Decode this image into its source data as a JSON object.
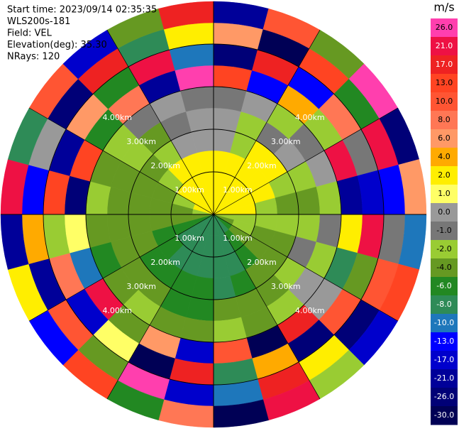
{
  "chart_data": {
    "type": "ppi",
    "info": [
      "Start time: 2023/09/14 02:35:35",
      "WLS200s-181",
      "Field: VEL",
      "Elevation(deg): 35.30",
      "NRays: 120"
    ],
    "rlim": [
      0,
      5
    ],
    "range_rings": [
      {
        "value": 1,
        "label": "1.00km"
      },
      {
        "value": 2,
        "label": "2.00km"
      },
      {
        "value": 3,
        "label": "3.00km"
      },
      {
        "value": 4,
        "label": "4.00km"
      }
    ],
    "values": [
      [
        3,
        3,
        3,
        3,
        2.5,
        2.5,
        -1.5,
        -3,
        -5,
        -7,
        -7,
        -7,
        -7,
        -7,
        -7,
        -7,
        -5,
        -3,
        -1.5,
        2.5,
        3,
        3,
        3,
        3
      ],
      [
        3,
        3.5,
        3,
        3,
        3,
        2.5,
        -1.5,
        -1.5,
        -3,
        -5,
        -7,
        -7,
        -7,
        -7,
        -7,
        -7,
        -5,
        -3,
        -3,
        -1.5,
        2.5,
        3,
        3,
        3
      ],
      [
        2.5,
        3,
        3.5,
        3,
        2.5,
        -1.5,
        -1.5,
        -3,
        -3,
        -5,
        -7,
        -7,
        -7,
        -7,
        -7,
        -5,
        -5,
        -3,
        -3,
        -3,
        -1.5,
        2.5,
        2.5,
        3
      ],
      [
        0.5,
        -1.5,
        2.5,
        2.5,
        -1.5,
        -3,
        -1.5,
        -3,
        -3,
        -3,
        -5,
        -7,
        -5,
        -5,
        -5,
        -5,
        -3,
        -3,
        -3,
        -3,
        -3,
        -1.5,
        0.5,
        0.5
      ],
      [
        0.5,
        -1.5,
        -0.5,
        0.5,
        -1.5,
        -3,
        -1.5,
        -0.5,
        -1.5,
        -3,
        -3,
        -3,
        -5,
        -5,
        -3,
        -3,
        -3,
        -3,
        -3,
        -3,
        -1.5,
        -3,
        -0.5,
        0.5
      ],
      [
        -0.5,
        0.5,
        -1.5,
        -0.5,
        0.5,
        -1.5,
        -0.5,
        -1.5,
        0.5,
        -1.5,
        -3,
        -1.5,
        -3,
        -3,
        -1.5,
        -3,
        -5,
        -3,
        -1.5,
        -3,
        -1.5,
        -0.5,
        0.5,
        -0.5
      ],
      [
        14,
        -12,
        5,
        -1.5,
        22,
        -20,
        3,
        -7,
        0.5,
        18,
        -28,
        11,
        -15,
        7,
        -3,
        24,
        -9,
        1.5,
        -23,
        15,
        -5,
        9,
        -18,
        27
      ],
      [
        -25,
        19,
        -11,
        8,
        -0.5,
        -16,
        25,
        -4,
        12,
        -22,
        4.5,
        -8,
        20,
        -27,
        1.5,
        -14,
        9,
        -1.5,
        16,
        -19,
        6,
        -6,
        23,
        -10
      ],
      [
        7,
        -29,
        15,
        -5,
        21,
        -12,
        -0.5,
        10,
        -24,
        3,
        18,
        -9,
        -17,
        26,
        -2.5,
        12,
        -21,
        5,
        -13,
        0.5,
        -26,
        19,
        -7,
        2.5
      ],
      [
        -18,
        11,
        -3,
        28,
        -22,
        6,
        -9,
        16,
        -14,
        -1.5,
        22,
        -27,
        8,
        -6,
        14,
        -11,
        3.5,
        -20,
        25,
        -8,
        11,
        -16,
        -4,
        20
      ]
    ],
    "colorbar": {
      "label": "m/s",
      "ticks": [
        {
          "value": 26,
          "label": "26.0"
        },
        {
          "value": 21,
          "label": "21.0"
        },
        {
          "value": 17,
          "label": "17.0"
        },
        {
          "value": 13,
          "label": "13.0"
        },
        {
          "value": 10,
          "label": "10.0"
        },
        {
          "value": 8,
          "label": "8.0"
        },
        {
          "value": 6,
          "label": "6.0"
        },
        {
          "value": 4,
          "label": "4.0"
        },
        {
          "value": 2,
          "label": "2.0"
        },
        {
          "value": 1,
          "label": "1.0"
        },
        {
          "value": 0,
          "label": "0.0"
        },
        {
          "value": -1,
          "label": "-1.0"
        },
        {
          "value": -2,
          "label": "-2.0"
        },
        {
          "value": -4,
          "label": "-4.0"
        },
        {
          "value": -6,
          "label": "-6.0"
        },
        {
          "value": -8,
          "label": "-8.0"
        },
        {
          "value": -10,
          "label": "-10.0"
        },
        {
          "value": -13,
          "label": "-13.0"
        },
        {
          "value": -17,
          "label": "-17.0"
        },
        {
          "value": -21,
          "label": "-21.0"
        },
        {
          "value": -26,
          "label": "-26.0"
        },
        {
          "value": -30,
          "label": "-30.0"
        }
      ],
      "colors": [
        "#ff3fae",
        "#ee1144",
        "#ee2222",
        "#ff4422",
        "#ff5533",
        "#ff7755",
        "#ff9966",
        "#ffaa00",
        "#ffee00",
        "#ffff66",
        "#999999",
        "#777777",
        "#99cc33",
        "#669922",
        "#228822",
        "#2e8b57",
        "#1e77bb",
        "#0000ff",
        "#0000cc",
        "#000099",
        "#000077",
        "#000055"
      ]
    }
  }
}
